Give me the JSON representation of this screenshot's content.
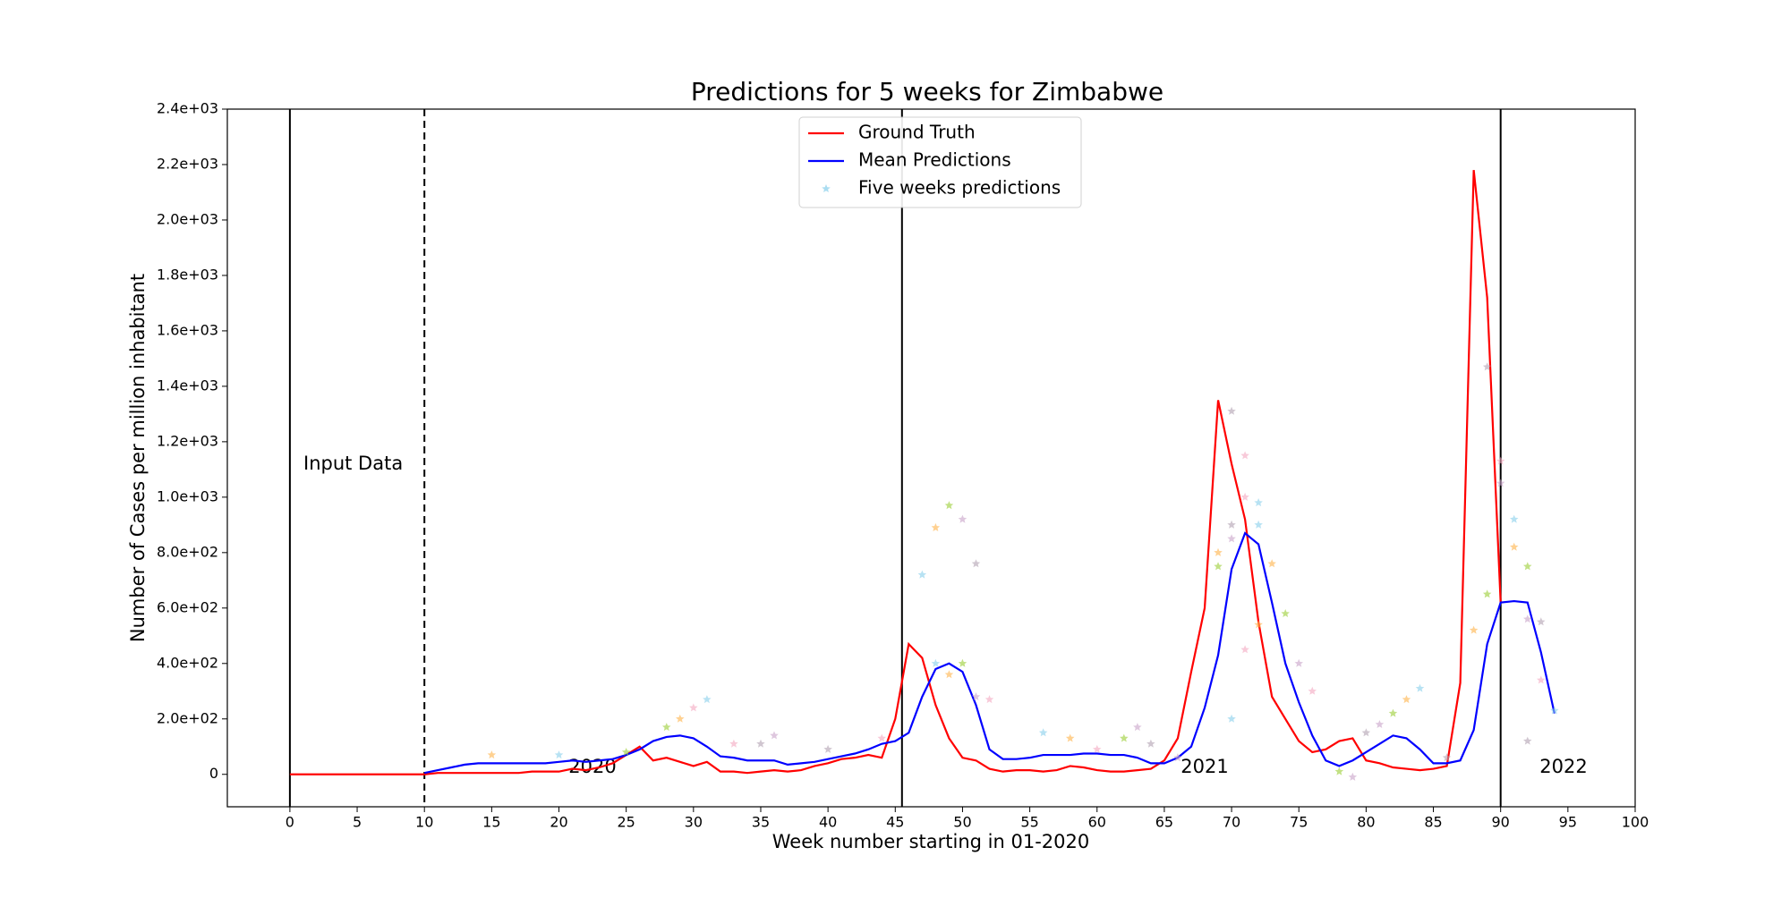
{
  "chart_data": {
    "type": "line",
    "title": "Predictions for 5 weeks for Zimbabwe",
    "x_label": "Week number starting in 01-2020",
    "y_label": "Number of Cases per million inhabitant",
    "xlim": [
      -4.65,
      100
    ],
    "ylim": [
      -117,
      2400
    ],
    "xticks": [
      0,
      5,
      10,
      15,
      20,
      25,
      30,
      35,
      40,
      45,
      50,
      55,
      60,
      65,
      70,
      75,
      80,
      85,
      90,
      95,
      100
    ],
    "yticks": [
      0,
      {
        "value": 200,
        "label": "2.0e+02"
      },
      {
        "value": 400,
        "label": "4.0e+02"
      },
      {
        "value": 600,
        "label": "6.0e+02"
      },
      {
        "value": 800,
        "label": "8.0e+02"
      },
      {
        "value": 1000,
        "label": "1.0e+03"
      },
      {
        "value": 1200,
        "label": "1.2e+03"
      },
      {
        "value": 1400,
        "label": "1.4e+03"
      },
      {
        "value": 1600,
        "label": "1.6e+03"
      },
      {
        "value": 1800,
        "label": "1.8e+03"
      },
      {
        "value": 2000,
        "label": "2.0e+03"
      },
      {
        "value": 2200,
        "label": "2.2e+03"
      },
      {
        "value": 2400,
        "label": "2.4e+03"
      }
    ],
    "legend": "upper center",
    "vlines": [
      {
        "x": 0,
        "style": "solid"
      },
      {
        "x": 10,
        "style": "dashed"
      },
      {
        "x": 45.5,
        "style": "solid"
      },
      {
        "x": 90,
        "style": "solid"
      }
    ],
    "annotations": [
      "Input Data",
      "2020",
      "2021",
      "2022"
    ],
    "series": [
      {
        "name": "Ground Truth",
        "color": "#ff0000",
        "kind": "line",
        "x": [
          0,
          1,
          2,
          3,
          4,
          5,
          6,
          7,
          8,
          9,
          10,
          11,
          12,
          13,
          14,
          15,
          16,
          17,
          18,
          19,
          20,
          21,
          22,
          23,
          24,
          25,
          26,
          27,
          28,
          29,
          30,
          31,
          32,
          33,
          34,
          35,
          36,
          37,
          38,
          39,
          40,
          41,
          42,
          43,
          44,
          45,
          46,
          47,
          48,
          49,
          50,
          51,
          52,
          53,
          54,
          55,
          56,
          57,
          58,
          59,
          60,
          61,
          62,
          63,
          64,
          65,
          66,
          67,
          68,
          69,
          70,
          71,
          72,
          73,
          74,
          75,
          76,
          77,
          78,
          79,
          80,
          81,
          82,
          83,
          84,
          85,
          86,
          87,
          88,
          89,
          90
        ],
        "values": [
          0,
          0,
          0,
          0,
          0,
          0,
          0,
          0,
          0,
          0,
          0,
          5,
          5,
          5,
          5,
          5,
          5,
          5,
          10,
          10,
          10,
          20,
          15,
          25,
          40,
          70,
          100,
          50,
          60,
          45,
          30,
          45,
          10,
          10,
          5,
          10,
          15,
          10,
          15,
          30,
          40,
          55,
          60,
          70,
          60,
          200,
          470,
          420,
          250,
          130,
          60,
          50,
          20,
          10,
          15,
          15,
          10,
          15,
          30,
          25,
          15,
          10,
          10,
          15,
          20,
          50,
          130,
          370,
          600,
          1350,
          1120,
          920,
          550,
          280,
          200,
          120,
          80,
          90,
          120,
          130,
          50,
          40,
          25,
          20,
          15,
          20,
          30,
          330,
          2180,
          1720,
          620
        ]
      },
      {
        "name": "Mean Predictions",
        "color": "#0000ff",
        "kind": "line",
        "x": [
          10,
          11,
          12,
          13,
          14,
          15,
          16,
          17,
          18,
          19,
          20,
          21,
          22,
          23,
          24,
          25,
          26,
          27,
          28,
          29,
          30,
          31,
          32,
          33,
          34,
          35,
          36,
          37,
          38,
          39,
          40,
          41,
          42,
          43,
          44,
          45,
          46,
          47,
          48,
          49,
          50,
          51,
          52,
          53,
          54,
          55,
          56,
          57,
          58,
          59,
          60,
          61,
          62,
          63,
          64,
          65,
          66,
          67,
          68,
          69,
          70,
          71,
          72,
          73,
          74,
          75,
          76,
          77,
          78,
          79,
          80,
          81,
          82,
          83,
          84,
          85,
          86,
          87,
          88,
          89,
          90,
          91,
          92,
          93,
          94
        ],
        "values": [
          5,
          15,
          25,
          35,
          40,
          40,
          40,
          40,
          40,
          40,
          45,
          50,
          45,
          50,
          55,
          70,
          90,
          120,
          135,
          140,
          130,
          100,
          65,
          60,
          50,
          50,
          50,
          35,
          40,
          45,
          55,
          65,
          75,
          90,
          110,
          120,
          150,
          280,
          380,
          400,
          370,
          250,
          90,
          55,
          55,
          60,
          70,
          70,
          70,
          75,
          75,
          70,
          70,
          60,
          40,
          40,
          60,
          100,
          240,
          430,
          740,
          870,
          830,
          620,
          400,
          260,
          140,
          50,
          30,
          50,
          80,
          110,
          140,
          130,
          90,
          40,
          40,
          50,
          160,
          470,
          620,
          625,
          620,
          440,
          220
        ]
      },
      {
        "name": "Five weeks predictions",
        "color": "#87ceeb",
        "kind": "scatter",
        "palette": [
          "#87ceeb",
          "#ffb347",
          "#9acd32",
          "#c8a2c8",
          "#b0a0b0",
          "#f4a6c0"
        ],
        "x": [
          47,
          48,
          49,
          50,
          51,
          52,
          48,
          49,
          50,
          51,
          70,
          71,
          72,
          73,
          74,
          75,
          70,
          71,
          72,
          69,
          69,
          70,
          89,
          90,
          91,
          91,
          92,
          92,
          93,
          93,
          94,
          88,
          89,
          90,
          92,
          30,
          31,
          29,
          28,
          36,
          35,
          33,
          84,
          83,
          82,
          81,
          80,
          76,
          56,
          58,
          62,
          63,
          64,
          71,
          70,
          72,
          78,
          79,
          40,
          44,
          20,
          15,
          25,
          66,
          86,
          60
        ],
        "values": [
          720,
          890,
          970,
          920,
          760,
          270,
          400,
          360,
          400,
          280,
          1310,
          1150,
          980,
          760,
          580,
          400,
          900,
          1000,
          900,
          800,
          750,
          850,
          1470,
          1130,
          920,
          820,
          750,
          560,
          550,
          340,
          230,
          520,
          650,
          1050,
          120,
          240,
          270,
          200,
          170,
          140,
          110,
          110,
          310,
          270,
          220,
          180,
          150,
          300,
          150,
          130,
          130,
          170,
          110,
          450,
          200,
          540,
          10,
          -10,
          90,
          130,
          70,
          70,
          80,
          60,
          60,
          90
        ]
      }
    ]
  }
}
